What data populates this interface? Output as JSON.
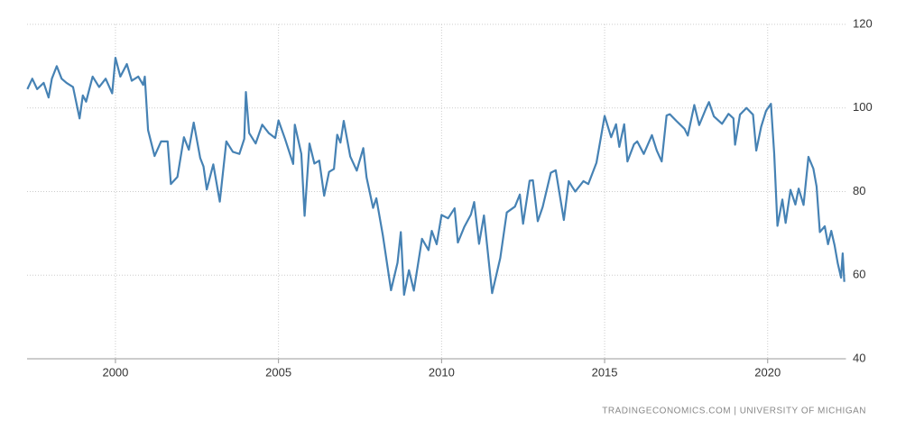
{
  "chart_data": {
    "type": "line",
    "source": "TRADINGECONOMICS.COM | UNIVERSITY OF MICHIGAN",
    "xlim": [
      1997.29,
      2022.4
    ],
    "xticks": [
      2000,
      2005,
      2010,
      2015,
      2020
    ],
    "ylim": [
      40,
      120
    ],
    "yticks": [
      40,
      60,
      80,
      100,
      120
    ],
    "grid": true,
    "series": [
      {
        "color": "#4682b4",
        "x": [
          1997.3,
          1997.45,
          1997.6,
          1997.8,
          1997.95,
          1998.05,
          1998.2,
          1998.35,
          1998.5,
          1998.7,
          1998.9,
          1999.0,
          1999.1,
          1999.3,
          1999.5,
          1999.7,
          1999.9,
          2000.0,
          2000.15,
          2000.35,
          2000.5,
          2000.7,
          2000.85,
          2000.9,
          2001.0,
          2001.2,
          2001.4,
          2001.6,
          2001.7,
          2001.9,
          2002.1,
          2002.25,
          2002.4,
          2002.6,
          2002.7,
          2002.8,
          2003.0,
          2003.2,
          2003.4,
          2003.6,
          2003.8,
          2003.95,
          2004.0,
          2004.1,
          2004.3,
          2004.5,
          2004.7,
          2004.9,
          2005.0,
          2005.2,
          2005.45,
          2005.5,
          2005.7,
          2005.8,
          2005.95,
          2006.1,
          2006.25,
          2006.4,
          2006.55,
          2006.7,
          2006.8,
          2006.9,
          2007.0,
          2007.2,
          2007.4,
          2007.6,
          2007.7,
          2007.9,
          2008.0,
          2008.2,
          2008.45,
          2008.65,
          2008.75,
          2008.85,
          2009.0,
          2009.15,
          2009.4,
          2009.6,
          2009.7,
          2009.85,
          2010.0,
          2010.2,
          2010.4,
          2010.5,
          2010.7,
          2010.9,
          2011.0,
          2011.15,
          2011.3,
          2011.55,
          2011.8,
          2012.0,
          2012.25,
          2012.4,
          2012.5,
          2012.7,
          2012.8,
          2012.95,
          2013.1,
          2013.35,
          2013.5,
          2013.75,
          2013.9,
          2014.0,
          2014.1,
          2014.35,
          2014.5,
          2014.75,
          2014.9,
          2015.0,
          2015.2,
          2015.35,
          2015.45,
          2015.6,
          2015.7,
          2015.9,
          2016.0,
          2016.2,
          2016.45,
          2016.6,
          2016.75,
          2016.9,
          2017.0,
          2017.2,
          2017.45,
          2017.55,
          2017.75,
          2017.9,
          2018.1,
          2018.2,
          2018.35,
          2018.6,
          2018.8,
          2018.95,
          2019.0,
          2019.15,
          2019.35,
          2019.55,
          2019.65,
          2019.8,
          2019.95,
          2020.1,
          2020.2,
          2020.3,
          2020.45,
          2020.55,
          2020.7,
          2020.85,
          2020.95,
          2021.1,
          2021.25,
          2021.4,
          2021.5,
          2021.6,
          2021.75,
          2021.85,
          2021.95,
          2022.05,
          2022.15,
          2022.25,
          2022.3,
          2022.35
        ],
        "values": [
          104.5,
          107,
          104.5,
          106,
          102.5,
          107,
          110,
          107,
          106,
          105,
          97.5,
          103,
          101.5,
          107.5,
          105,
          107,
          103.5,
          112,
          107.5,
          110.5,
          106.5,
          107.5,
          105.5,
          107.5,
          94.7,
          88.5,
          92,
          92,
          81.8,
          83.5,
          93,
          90,
          96.5,
          88,
          86,
          80.5,
          86.5,
          77.6,
          92,
          89.5,
          89,
          92.6,
          103.8,
          94,
          91.5,
          96,
          94,
          92.8,
          97,
          92.6,
          86.6,
          96,
          89,
          74.2,
          91.5,
          86.7,
          87.4,
          79,
          84.7,
          85.4,
          93.6,
          91.7,
          96.9,
          88.4,
          85,
          90.4,
          83.4,
          76.1,
          78.4,
          69.5,
          56.4,
          63,
          70.3,
          55.3,
          61.2,
          56.3,
          68.7,
          66,
          70.6,
          67.4,
          74.4,
          73.6,
          76,
          67.8,
          71.6,
          74.5,
          77.5,
          67.5,
          74.3,
          55.7,
          64.1,
          75,
          76.4,
          79.3,
          72.3,
          82.6,
          82.7,
          72.9,
          76.3,
          84.5,
          85.1,
          73.2,
          82.5,
          81.2,
          80,
          82.5,
          81.8,
          86.9,
          93.6,
          98.1,
          93,
          96.1,
          90.7,
          96.1,
          87.2,
          91.3,
          92,
          89,
          93.5,
          89.8,
          87.2,
          98.2,
          98.5,
          96.9,
          95,
          93.4,
          100.7,
          95.9,
          99.7,
          101.4,
          98,
          96.2,
          98.6,
          97.5,
          91.2,
          98.4,
          100,
          98.4,
          89.8,
          95.5,
          99.3,
          101,
          89.1,
          71.8,
          78.1,
          72.5,
          80.4,
          76.9,
          80.7,
          76.8,
          88.3,
          85.5,
          81.2,
          70.3,
          71.7,
          67.4,
          70.6,
          67.2,
          62.8,
          59.4,
          65.2,
          58.4
        ]
      }
    ]
  }
}
